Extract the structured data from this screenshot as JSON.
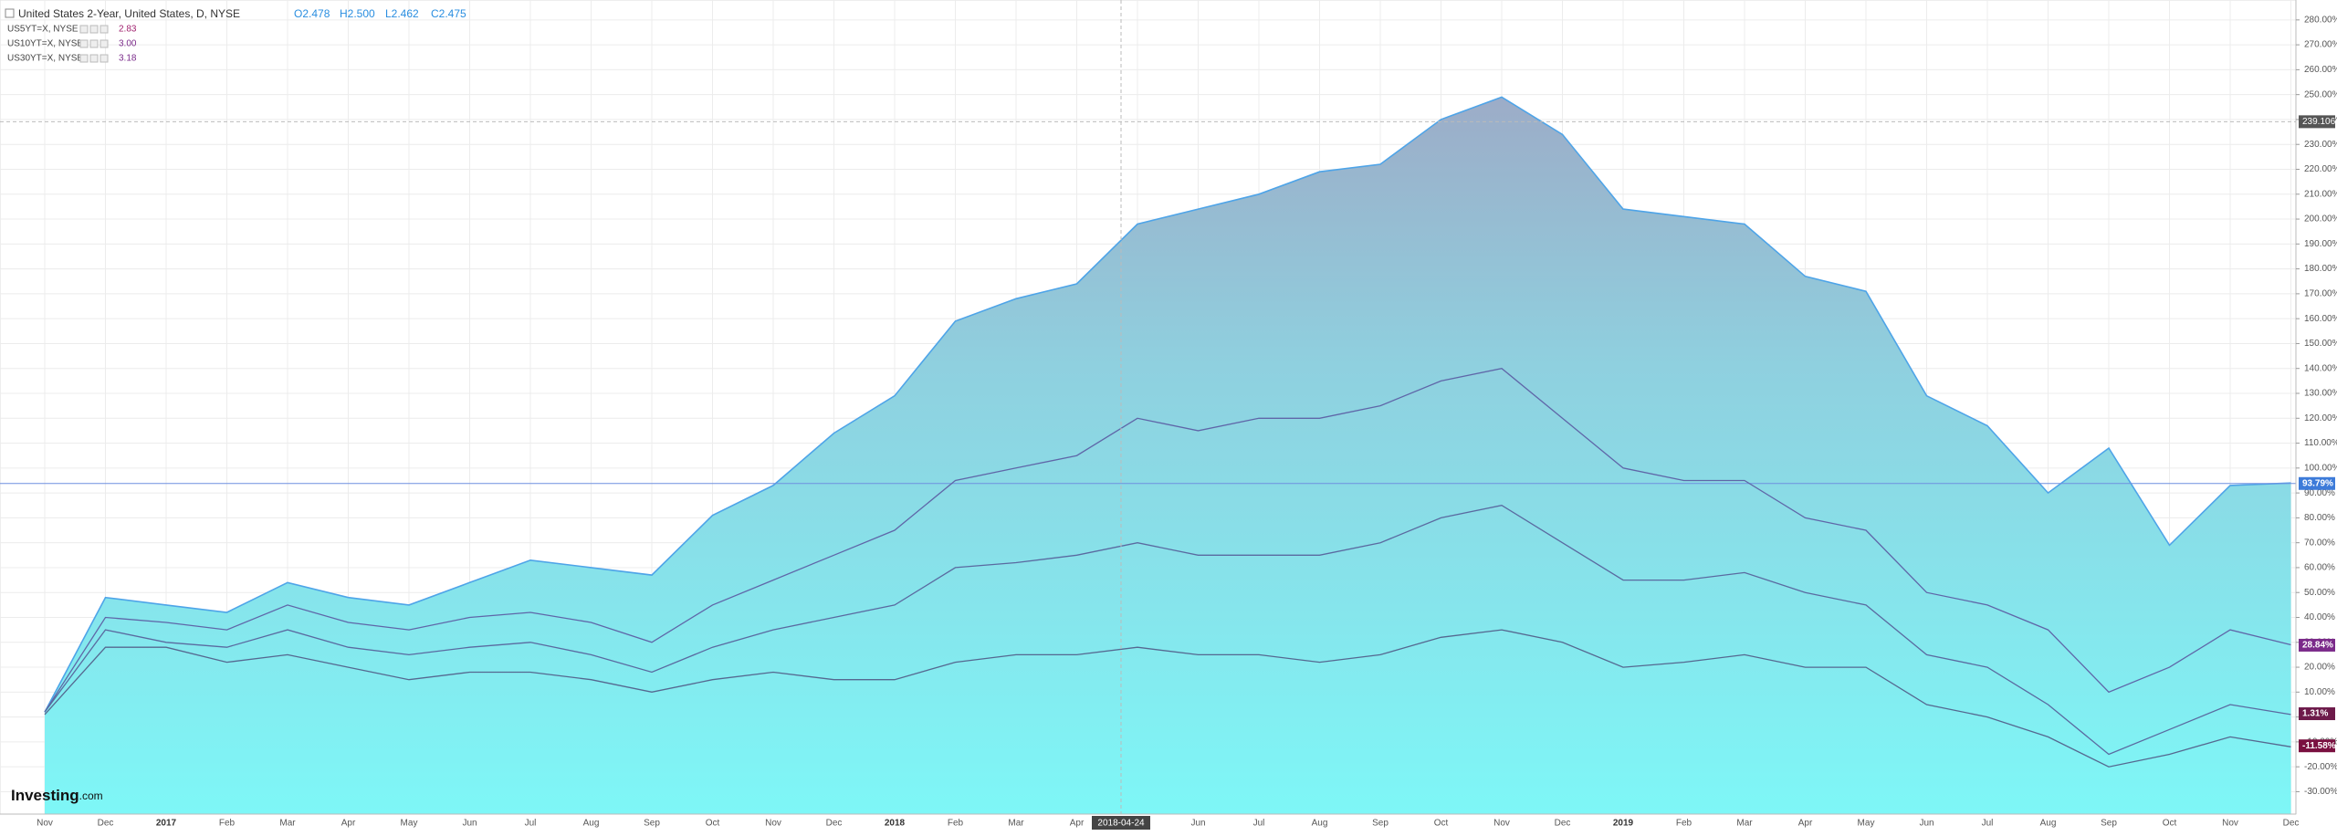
{
  "chart_data": {
    "type": "area-lines",
    "header": {
      "title": "United States 2-Year, United States, D, NYSE",
      "open": "O2.478",
      "high": "H2.500",
      "low": "L2.462",
      "close": "C2.475"
    },
    "categories": [
      "Nov",
      "Dec",
      "2017",
      "Feb",
      "Mar",
      "Apr",
      "May",
      "Jun",
      "Jul",
      "Aug",
      "Sep",
      "Oct",
      "Nov",
      "Dec",
      "2018",
      "Feb",
      "Mar",
      "Apr",
      null,
      "Jun",
      "Jul",
      "Aug",
      "Sep",
      "Oct",
      "Nov",
      "Dec",
      "2019",
      "Feb",
      "Mar",
      "Apr",
      "May",
      "Jun",
      "Jul",
      "Aug",
      "Sep",
      "Oct",
      "Nov",
      "Dec"
    ],
    "crosshair": {
      "x_label": "2018-04-24",
      "y_value": 239.106
    },
    "series": [
      {
        "name": "United States 2-Year",
        "color": "#4ea4e8",
        "end_value": 93.79,
        "end_label": "93.79%",
        "tag_color": "#3d7bd9",
        "values": [
          2,
          48,
          45,
          42,
          54,
          48,
          45,
          54,
          63,
          60,
          57,
          81,
          93,
          114,
          129,
          159,
          168,
          174,
          198,
          204,
          210,
          219,
          222,
          240,
          249,
          234,
          204,
          201,
          198,
          177,
          171,
          129,
          117,
          90,
          108,
          69,
          93,
          94
        ]
      },
      {
        "name": "US5YT=X, NYSE",
        "legend_value": "2.83",
        "color": "#5f66a8",
        "end_value": 28.84,
        "end_label": "28.84%",
        "tag_color": "#7b2a8a",
        "values": [
          2,
          40,
          38,
          35,
          45,
          38,
          35,
          40,
          42,
          38,
          30,
          45,
          55,
          65,
          75,
          95,
          100,
          105,
          120,
          115,
          120,
          120,
          125,
          135,
          140,
          120,
          100,
          95,
          95,
          80,
          75,
          50,
          45,
          35,
          10,
          20,
          35,
          29
        ]
      },
      {
        "name": "US10YT=X, NYSE",
        "legend_value": "3.00",
        "color": "#5a6aa0",
        "end_value": 1.31,
        "end_label": "1.31%",
        "tag_color": "#6d1a4a",
        "values": [
          2,
          35,
          30,
          28,
          35,
          28,
          25,
          28,
          30,
          25,
          18,
          28,
          35,
          40,
          45,
          60,
          62,
          65,
          70,
          65,
          65,
          65,
          70,
          80,
          85,
          70,
          55,
          55,
          58,
          50,
          45,
          25,
          20,
          5,
          -15,
          -5,
          5,
          1
        ]
      },
      {
        "name": "US30YT=X, NYSE",
        "legend_value": "3.18",
        "color": "#556890",
        "end_value": -11.58,
        "end_label": "-11.58%",
        "tag_color": "#7a1040",
        "values": [
          1,
          28,
          28,
          22,
          25,
          20,
          15,
          18,
          18,
          15,
          10,
          15,
          18,
          15,
          15,
          22,
          25,
          25,
          28,
          25,
          25,
          22,
          25,
          32,
          35,
          30,
          20,
          22,
          25,
          20,
          20,
          5,
          0,
          -8,
          -20,
          -15,
          -8,
          -12
        ]
      }
    ],
    "ylim": [
      -39,
      288
    ],
    "yticks": [
      {
        "value": -30,
        "label": "-30.00%"
      },
      {
        "value": -20,
        "label": "-20.00%"
      },
      {
        "value": -10,
        "label": "-10.00%"
      },
      {
        "value": 0,
        "label": "0.00%"
      },
      {
        "value": 10,
        "label": "10.00%"
      },
      {
        "value": 20,
        "label": "20.00%"
      },
      {
        "value": 30,
        "label": "30.00%"
      },
      {
        "value": 40,
        "label": "40.00%"
      },
      {
        "value": 50,
        "label": "50.00%"
      },
      {
        "value": 60,
        "label": "60.00%"
      },
      {
        "value": 70,
        "label": "70.00%"
      },
      {
        "value": 80,
        "label": "80.00%"
      },
      {
        "value": 90,
        "label": "90.00%"
      },
      {
        "value": 100,
        "label": "100.00%"
      },
      {
        "value": 110,
        "label": "110.00%"
      },
      {
        "value": 120,
        "label": "120.00%"
      },
      {
        "value": 130,
        "label": "130.00%"
      },
      {
        "value": 140,
        "label": "140.00%"
      },
      {
        "value": 150,
        "label": "150.00%"
      },
      {
        "value": 160,
        "label": "160.00%"
      },
      {
        "value": 170,
        "label": "170.00%"
      },
      {
        "value": 180,
        "label": "180.00%"
      },
      {
        "value": 190,
        "label": "190.00%"
      },
      {
        "value": 200,
        "label": "200.00%"
      },
      {
        "value": 210,
        "label": "210.00%"
      },
      {
        "value": 220,
        "label": "220.00%"
      },
      {
        "value": 230,
        "label": "230.00%"
      },
      {
        "value": 240,
        "label": "240.00%"
      },
      {
        "value": 250,
        "label": "250.00%"
      },
      {
        "value": 260,
        "label": "260.00%"
      },
      {
        "value": 270,
        "label": "270.00%"
      },
      {
        "value": 280,
        "label": "280.00%"
      }
    ],
    "grid": true,
    "logo_main": "Investing",
    "logo_suffix": ".com"
  }
}
